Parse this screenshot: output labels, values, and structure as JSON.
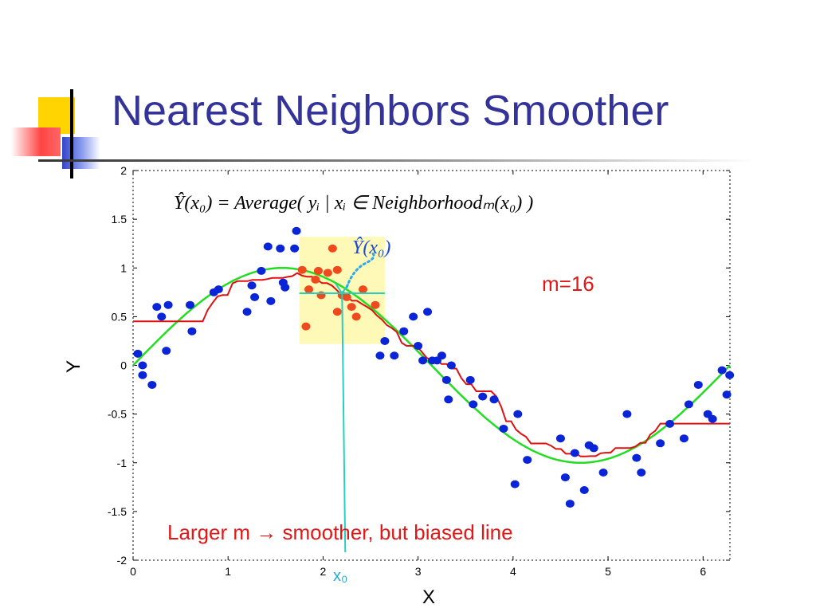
{
  "slide": {
    "title": "Nearest Neighbors Smoother"
  },
  "colors": {
    "title": "#333399",
    "accent_yellow": "#ffd400",
    "accent_blue": "#3344cc",
    "accent_red": "#ff4444",
    "points": "#0a24d8",
    "neighborhood_points": "#ee4a1e",
    "true_curve": "#22dd22",
    "smoother": "#dd1111",
    "highlight": "#fff9b8",
    "cyan": "#25d0c0",
    "dotted": "#2aa8f0"
  },
  "chart_data": {
    "type": "scatter",
    "title": "",
    "xlabel": "X",
    "ylabel": "Y",
    "xlim": [
      0,
      6.283
    ],
    "ylim": [
      -2,
      2
    ],
    "xticks": [
      0,
      1,
      2,
      3,
      4,
      5,
      6
    ],
    "yticks": [
      -2,
      -1.5,
      -1,
      -0.5,
      0,
      0.5,
      1,
      1.5,
      2
    ],
    "ytick_labels": [
      "-2",
      "-1.5",
      "-1",
      "-0.5",
      "0",
      "0.5",
      "1",
      "1.5",
      "2"
    ],
    "grid": false,
    "neighborhood": {
      "x_range": [
        1.75,
        2.65
      ],
      "y_range": [
        0.22,
        1.32
      ]
    },
    "x0": 2.2,
    "y0_hat": 0.74,
    "formula": "Ŷ(x₀) = Average( yᵢ | xᵢ ∈ Neighborhoodₘ(x₀) )",
    "yhat_label": "Ŷ(x₀)",
    "x0_label": "x₀",
    "m_label": "m=16",
    "caption": "Larger m → smoother, but biased line",
    "series": [
      {
        "role": "data points",
        "x": [
          0.05,
          0.1,
          0.1,
          0.2,
          0.25,
          0.3,
          0.35,
          0.37,
          0.6,
          0.62,
          0.85,
          0.9,
          1.2,
          1.25,
          1.28,
          1.35,
          1.42,
          1.45,
          1.55,
          1.58,
          1.6,
          1.7,
          1.72,
          2.6,
          2.65,
          2.75,
          2.85,
          2.95,
          3.0,
          3.05,
          3.1,
          3.15,
          3.2,
          3.25,
          3.3,
          3.32,
          3.35,
          3.55,
          3.58,
          3.68,
          3.8,
          3.9,
          4.02,
          4.05,
          4.15,
          4.5,
          4.55,
          4.6,
          4.65,
          4.75,
          4.8,
          4.85,
          4.95,
          5.2,
          5.3,
          5.35,
          5.55,
          5.65,
          5.8,
          5.85,
          5.95,
          6.05,
          6.1,
          6.2,
          6.25,
          6.28
        ],
        "y": [
          0.12,
          0.0,
          -0.1,
          -0.2,
          0.6,
          0.5,
          0.15,
          0.62,
          0.62,
          0.35,
          0.75,
          0.78,
          0.55,
          0.82,
          0.7,
          0.97,
          1.22,
          0.66,
          1.2,
          0.85,
          0.8,
          1.2,
          1.38,
          0.1,
          0.25,
          0.1,
          0.35,
          0.5,
          0.2,
          0.05,
          0.55,
          0.05,
          0.05,
          0.1,
          -0.15,
          -0.35,
          0.0,
          -0.15,
          -0.4,
          -0.32,
          -0.35,
          -0.65,
          -1.22,
          -0.5,
          -0.97,
          -0.75,
          -1.15,
          -1.42,
          -0.9,
          -1.28,
          -0.82,
          -0.85,
          -1.1,
          -0.5,
          -0.95,
          -1.1,
          -0.8,
          -0.6,
          -0.75,
          -0.4,
          -0.2,
          -0.5,
          -0.55,
          -0.05,
          -0.3,
          -0.1
        ]
      },
      {
        "role": "neighborhood points",
        "x": [
          1.78,
          1.82,
          1.85,
          1.92,
          1.95,
          1.98,
          2.05,
          2.1,
          2.15,
          2.2,
          2.25,
          2.3,
          2.35,
          2.42,
          2.55,
          2.15
        ],
        "y": [
          0.98,
          0.4,
          0.78,
          0.88,
          0.97,
          0.72,
          0.95,
          1.2,
          0.55,
          0.72,
          0.7,
          0.6,
          0.5,
          0.78,
          0.62,
          0.98
        ]
      }
    ]
  }
}
